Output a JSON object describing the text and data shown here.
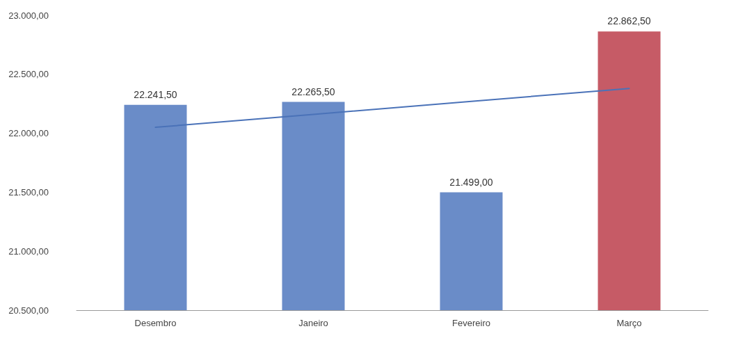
{
  "chart_data": {
    "type": "bar",
    "categories": [
      "Desembro",
      "Janeiro",
      "Fevereiro",
      "Março"
    ],
    "series": [
      {
        "colors": [
          "#6a8cc8",
          "#6a8cc8",
          "#6a8cc8",
          "#c65b66"
        ],
        "values": [
          22241.5,
          22265.5,
          21499,
          22862.5
        ],
        "value_labels": [
          "22.241,50",
          "22.265,50",
          "21.499,00",
          "22.862,50"
        ]
      },
      {
        "type": "line",
        "color": "#4a72b8",
        "x": [
          "Desembro",
          "Janeiro",
          "Fevereiro",
          "Março"
        ],
        "values": [
          22050,
          22160,
          22270,
          22380
        ],
        "marker": "none"
      }
    ],
    "ylim": [
      20500,
      23000
    ],
    "yticks": [
      {
        "value": 20500,
        "label": "20.500,00"
      },
      {
        "value": 21000,
        "label": "21.000,00"
      },
      {
        "value": 21500,
        "label": "21.500,00"
      },
      {
        "value": 22000,
        "label": "22.000,00"
      },
      {
        "value": 22500,
        "label": "22.500,00"
      },
      {
        "value": 23000,
        "label": "23.000,00"
      }
    ],
    "grid": false
  }
}
